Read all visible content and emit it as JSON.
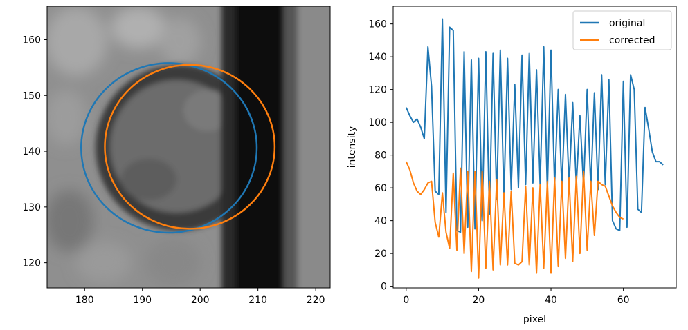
{
  "chart_data": [
    {
      "type": "heatmap",
      "title": "",
      "xlabel": "",
      "ylabel": "",
      "xlim": [
        173.5,
        222.5
      ],
      "ylim": [
        115.5,
        166
      ],
      "xticks": [
        180,
        190,
        200,
        210,
        220
      ],
      "yticks": [
        120,
        130,
        140,
        150,
        160
      ],
      "grid": false,
      "colormap": "gray",
      "image_notes": "grayscale microscopy crop with a dark circular particle and a dark vertical band on the right",
      "series": [
        {
          "type": "circle",
          "color": "#1f77b4",
          "cx": 194.6,
          "cy": 140.6,
          "r": 15.2
        },
        {
          "type": "circle",
          "color": "#ff7f0e",
          "cx": 198.2,
          "cy": 140.8,
          "r": 14.7
        }
      ]
    },
    {
      "type": "line",
      "title": "",
      "xlabel": "pixel",
      "ylabel": "intensity",
      "xlim": [
        -3.6,
        74.6
      ],
      "ylim": [
        -1,
        170.8
      ],
      "xticks": [
        0,
        20,
        40,
        60
      ],
      "yticks": [
        0,
        20,
        40,
        60,
        80,
        100,
        120,
        140,
        160
      ],
      "grid": false,
      "legend": "top-right",
      "series": [
        {
          "name": "original",
          "color": "#1f77b4",
          "x": [
            0,
            1,
            2,
            3,
            4,
            5,
            6,
            7,
            8,
            9,
            10,
            11,
            12,
            13,
            14,
            15,
            16,
            17,
            18,
            19,
            20,
            21,
            22,
            23,
            24,
            25,
            26,
            27,
            28,
            29,
            30,
            31,
            32,
            33,
            34,
            35,
            36,
            37,
            38,
            39,
            40,
            41,
            42,
            43,
            44,
            45,
            46,
            47,
            48,
            49,
            50,
            51,
            52,
            53,
            54,
            55,
            56,
            57,
            58,
            59,
            60,
            61,
            62,
            63,
            64,
            65,
            66,
            67,
            68,
            69,
            70,
            71
          ],
          "values": [
            109,
            104,
            100,
            102,
            97,
            90,
            146,
            122,
            58,
            56,
            163,
            45,
            158,
            156,
            34,
            33,
            143,
            36,
            138,
            35,
            139,
            40,
            143,
            44,
            142,
            53,
            144,
            54,
            139,
            59,
            123,
            60,
            141,
            62,
            142,
            63,
            132,
            62,
            146,
            58,
            144,
            61,
            120,
            60,
            117,
            62,
            112,
            62,
            104,
            61,
            120,
            60,
            118,
            59,
            129,
            62,
            126,
            40,
            35,
            34,
            125,
            36,
            129,
            120,
            47,
            45,
            109,
            96,
            82,
            76,
            76,
            74
          ]
        },
        {
          "name": "corrected",
          "color": "#ff7f0e",
          "x": [
            0,
            1,
            2,
            3,
            4,
            5,
            6,
            7,
            8,
            9,
            10,
            11,
            12,
            13,
            14,
            15,
            16,
            17,
            18,
            19,
            20,
            21,
            22,
            23,
            24,
            25,
            26,
            27,
            28,
            29,
            30,
            31,
            32,
            33,
            34,
            35,
            36,
            37,
            38,
            39,
            40,
            41,
            42,
            43,
            44,
            45,
            46,
            47,
            48,
            49,
            50,
            51,
            52,
            53,
            54,
            55,
            56,
            57,
            58,
            59,
            60
          ],
          "values": [
            76,
            71,
            63,
            58,
            56,
            59,
            63,
            64,
            39,
            30,
            57,
            33,
            23,
            69,
            22,
            72,
            20,
            70,
            9,
            70,
            5,
            70,
            11,
            64,
            10,
            65,
            13,
            57,
            13,
            58,
            14,
            13,
            15,
            61,
            13,
            60,
            8,
            62,
            11,
            64,
            8,
            66,
            12,
            64,
            17,
            66,
            15,
            67,
            20,
            70,
            22,
            64,
            31,
            64,
            62,
            61,
            55,
            49,
            45,
            42,
            41
          ]
        }
      ]
    }
  ]
}
